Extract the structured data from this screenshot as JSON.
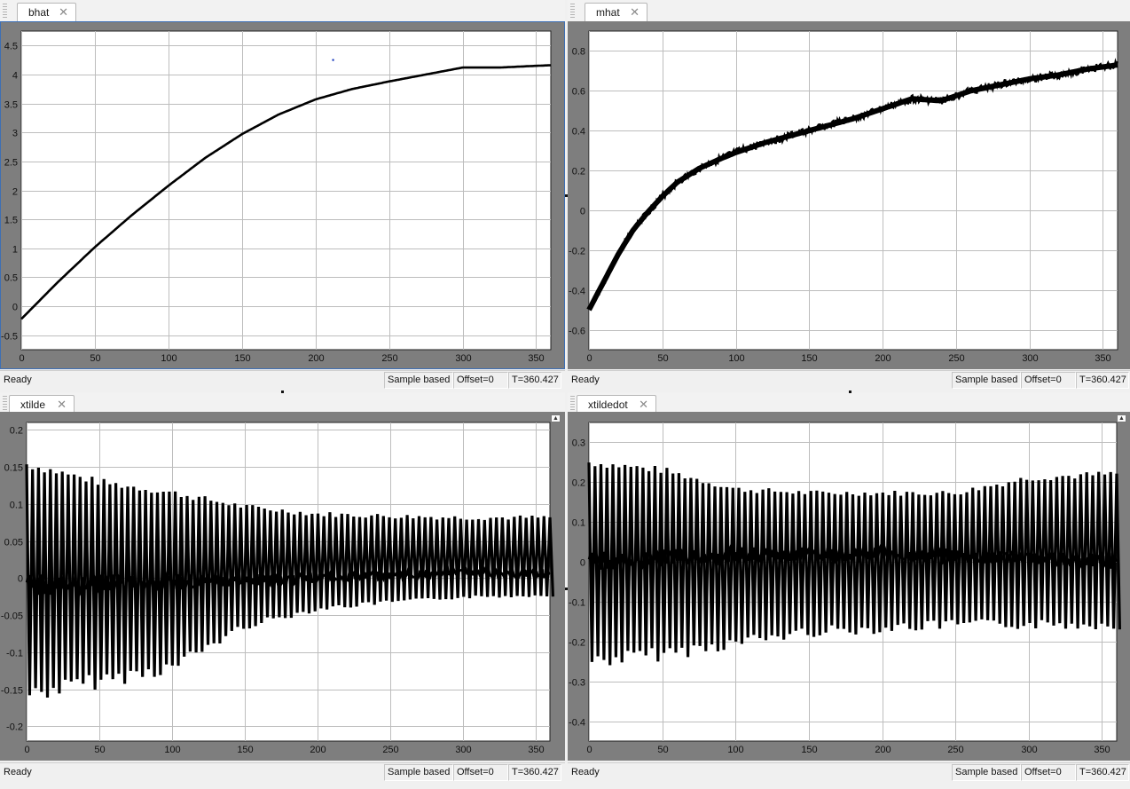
{
  "status": {
    "ready": "Ready",
    "mode": "Sample based",
    "offset": "Offset=0",
    "time": "T=360.427"
  },
  "scopes": [
    {
      "id": "bhat",
      "title": "bhat",
      "chart_data": {
        "type": "line",
        "title": "",
        "xlabel": "",
        "ylabel": "",
        "xlim": [
          0,
          360
        ],
        "ylim": [
          -0.75,
          4.75
        ],
        "xticks": [
          0,
          50,
          100,
          150,
          200,
          250,
          300,
          350
        ],
        "yticks": [
          -0.5,
          0,
          0.5,
          1,
          1.5,
          2,
          2.5,
          3,
          3.5,
          4,
          4.5
        ],
        "grid": true,
        "series": [
          {
            "x": [
              0,
              25,
              50,
              75,
              100,
              125,
              150,
              175,
              200,
              225,
              250,
              275,
              300,
              325,
              350,
              360
            ],
            "y": [
              -0.22,
              0.42,
              1.02,
              1.57,
              2.08,
              2.56,
              2.97,
              3.31,
              3.57,
              3.75,
              3.88,
              4.0,
              4.12,
              4.12,
              4.15,
              4.16
            ],
            "thickness": "thin"
          }
        ],
        "annotations": [
          {
            "x": 212,
            "y": 4.25,
            "type": "dot",
            "color": "#1f3fbf"
          }
        ]
      }
    },
    {
      "id": "mhat",
      "title": "mhat",
      "chart_data": {
        "type": "line",
        "title": "",
        "xlabel": "",
        "ylabel": "",
        "xlim": [
          0,
          360
        ],
        "ylim": [
          -0.7,
          0.9
        ],
        "xticks": [
          0,
          50,
          100,
          150,
          200,
          250,
          300,
          350
        ],
        "yticks": [
          -0.6,
          -0.4,
          -0.2,
          0,
          0.2,
          0.4,
          0.6,
          0.8
        ],
        "grid": true,
        "series": [
          {
            "x": [
              0,
              10,
              20,
              30,
              40,
              50,
              60,
              75,
              90,
              100,
              120,
              140,
              160,
              180,
              200,
              220,
              240,
              260,
              280,
              300,
              320,
              340,
              360
            ],
            "y": [
              -0.5,
              -0.36,
              -0.22,
              -0.1,
              -0.01,
              0.07,
              0.14,
              0.21,
              0.26,
              0.29,
              0.34,
              0.38,
              0.42,
              0.46,
              0.51,
              0.56,
              0.55,
              0.6,
              0.63,
              0.66,
              0.68,
              0.71,
              0.73
            ],
            "thickness": "noisy"
          }
        ]
      }
    },
    {
      "id": "xtilde",
      "title": "xtilde",
      "chart_data": {
        "type": "line",
        "title": "",
        "xlabel": "",
        "ylabel": "",
        "xlim": [
          0,
          360
        ],
        "ylim": [
          -0.22,
          0.21
        ],
        "xticks": [
          0,
          50,
          100,
          150,
          200,
          250,
          300,
          350
        ],
        "yticks": [
          -0.2,
          -0.15,
          -0.1,
          -0.05,
          0,
          0.05,
          0.1,
          0.15,
          0.2
        ],
        "grid": true,
        "series": [
          {
            "kind": "oscillation",
            "cycles": 88,
            "upper_env": {
              "x": [
                0,
                50,
                100,
                150,
                200,
                250,
                300,
                360
              ],
              "y": [
                0.16,
                0.135,
                0.12,
                0.1,
                0.09,
                0.087,
                0.085,
                0.085
              ]
            },
            "lower_env": {
              "x": [
                0,
                50,
                100,
                150,
                200,
                250,
                300,
                360
              ],
              "y": [
                -0.17,
                -0.15,
                -0.13,
                -0.07,
                -0.045,
                -0.035,
                -0.028,
                -0.025
              ]
            },
            "mid_env": {
              "x": [
                0,
                100,
                200,
                300,
                360
              ],
              "y": [
                -0.01,
                -0.005,
                0.0,
                0.008,
                0.005
              ]
            }
          }
        ]
      }
    },
    {
      "id": "xtildedot",
      "title": "xtildedot",
      "chart_data": {
        "type": "line",
        "title": "",
        "xlabel": "",
        "ylabel": "",
        "xlim": [
          0,
          360
        ],
        "ylim": [
          -0.45,
          0.35
        ],
        "xticks": [
          0,
          50,
          100,
          150,
          200,
          250,
          300,
          350
        ],
        "yticks": [
          -0.4,
          -0.3,
          -0.2,
          -0.1,
          0,
          0.1,
          0.2,
          0.3
        ],
        "grid": true,
        "series": [
          {
            "kind": "oscillation",
            "cycles": 88,
            "upper_env": {
              "x": [
                0,
                50,
                100,
                150,
                200,
                250,
                300,
                360
              ],
              "y": [
                0.26,
                0.24,
                0.19,
                0.18,
                0.18,
                0.18,
                0.22,
                0.23
              ]
            },
            "lower_env": {
              "x": [
                0,
                50,
                100,
                150,
                200,
                250,
                300,
                360
              ],
              "y": [
                -0.27,
                -0.25,
                -0.22,
                -0.19,
                -0.18,
                -0.17,
                -0.17,
                -0.17
              ]
            },
            "mid_env": {
              "x": [
                0,
                100,
                200,
                300,
                360
              ],
              "y": [
                0.0,
                0.02,
                0.02,
                0.01,
                0.0
              ]
            }
          }
        ]
      }
    }
  ]
}
